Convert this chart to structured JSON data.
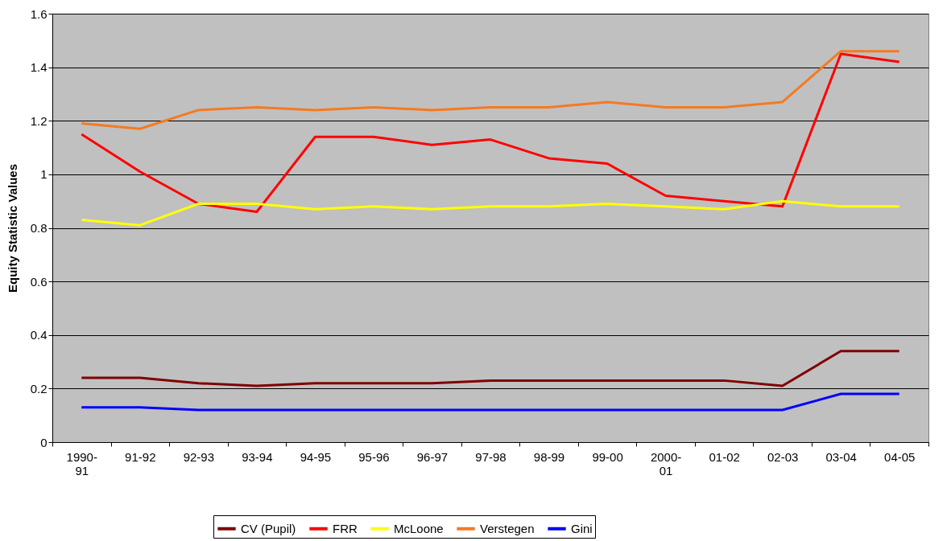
{
  "chart_data": {
    "type": "line",
    "ylabel": "Equity Statistic Values",
    "categories": [
      "1990-91",
      "91-92",
      "92-93",
      "93-94",
      "94-95",
      "95-96",
      "96-97",
      "97-98",
      "98-99",
      "99-00",
      "2000-01",
      "01-02",
      "02-03",
      "03-04",
      "04-05"
    ],
    "series": [
      {
        "name": "CV (Pupil)",
        "color": "#800000",
        "values": [
          0.24,
          0.24,
          0.22,
          0.21,
          0.22,
          0.22,
          0.22,
          0.23,
          0.23,
          0.23,
          0.23,
          0.23,
          0.21,
          0.34,
          0.34
        ]
      },
      {
        "name": "FRR",
        "color": "#ff0000",
        "values": [
          1.15,
          1.01,
          0.89,
          0.86,
          1.14,
          1.14,
          1.11,
          1.13,
          1.06,
          1.04,
          0.92,
          0.9,
          0.88,
          1.45,
          1.42
        ]
      },
      {
        "name": "McLoone",
        "color": "#ffff00",
        "values": [
          0.83,
          0.81,
          0.89,
          0.89,
          0.87,
          0.88,
          0.87,
          0.88,
          0.88,
          0.89,
          0.88,
          0.87,
          0.9,
          0.88,
          0.88
        ]
      },
      {
        "name": "Verstegen",
        "color": "#f47a20",
        "values": [
          1.19,
          1.17,
          1.24,
          1.25,
          1.24,
          1.25,
          1.24,
          1.25,
          1.25,
          1.27,
          1.25,
          1.25,
          1.27,
          1.46,
          1.46
        ]
      },
      {
        "name": "Gini",
        "color": "#0000ff",
        "values": [
          0.13,
          0.13,
          0.12,
          0.12,
          0.12,
          0.12,
          0.12,
          0.12,
          0.12,
          0.12,
          0.12,
          0.12,
          0.12,
          0.18,
          0.18
        ]
      }
    ],
    "ylim": [
      0,
      1.6
    ],
    "yticks": [
      0,
      0.2,
      0.4,
      0.6,
      0.8,
      1,
      1.2,
      1.4,
      1.6
    ],
    "grid": "y",
    "legend": "bottom",
    "marker": "none",
    "line_style": "solid"
  }
}
